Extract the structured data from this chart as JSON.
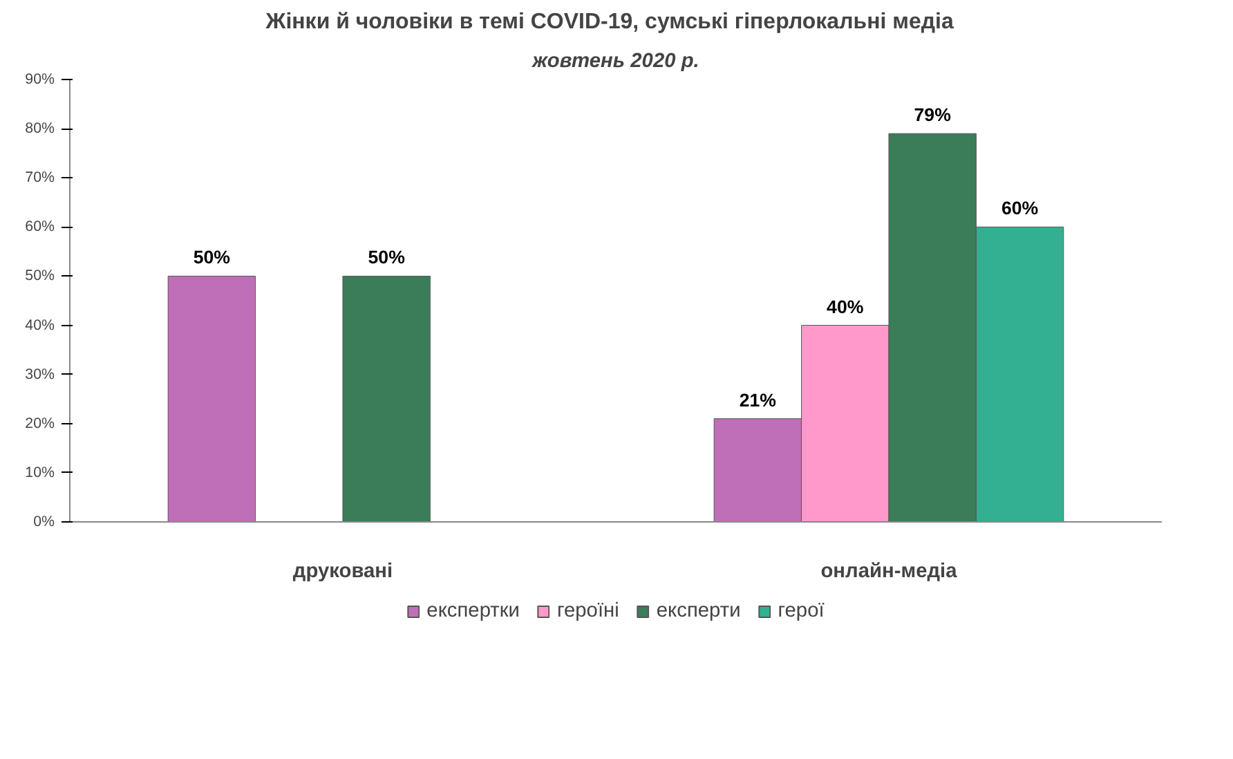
{
  "chart_data": {
    "type": "bar",
    "title": "Жінки й чоловіки  в темі COVID-19, сумські гіперлокальні  медіа",
    "subtitle": "жовтень 2020 р.",
    "categories": [
      "друковані",
      "онлайн-медіа"
    ],
    "series": [
      {
        "name": "експертки",
        "color": "#bf6fb8",
        "values": [
          50,
          21
        ],
        "value_labels": [
          "50%",
          "21%"
        ]
      },
      {
        "name": "героїні",
        "color": "#ff99cc",
        "values": [
          null,
          40
        ],
        "value_labels": [
          null,
          "40%"
        ]
      },
      {
        "name": "експерти",
        "color": "#3a7d58",
        "values": [
          50,
          79
        ],
        "value_labels": [
          "50%",
          "79%"
        ]
      },
      {
        "name": "герої",
        "color": "#33b092",
        "values": [
          null,
          60
        ],
        "value_labels": [
          null,
          "60%"
        ]
      }
    ],
    "ylim": [
      0,
      90
    ],
    "yticks": [
      {
        "value": 0,
        "label": "0%"
      },
      {
        "value": 10,
        "label": "10%"
      },
      {
        "value": 20,
        "label": "20%"
      },
      {
        "value": 30,
        "label": "30%"
      },
      {
        "value": 40,
        "label": "40%"
      },
      {
        "value": 50,
        "label": "50%"
      },
      {
        "value": 60,
        "label": "60%"
      },
      {
        "value": 70,
        "label": "70%"
      },
      {
        "value": 80,
        "label": "80%"
      },
      {
        "value": 90,
        "label": "90%"
      }
    ],
    "grid": false,
    "legend": "bottom"
  }
}
